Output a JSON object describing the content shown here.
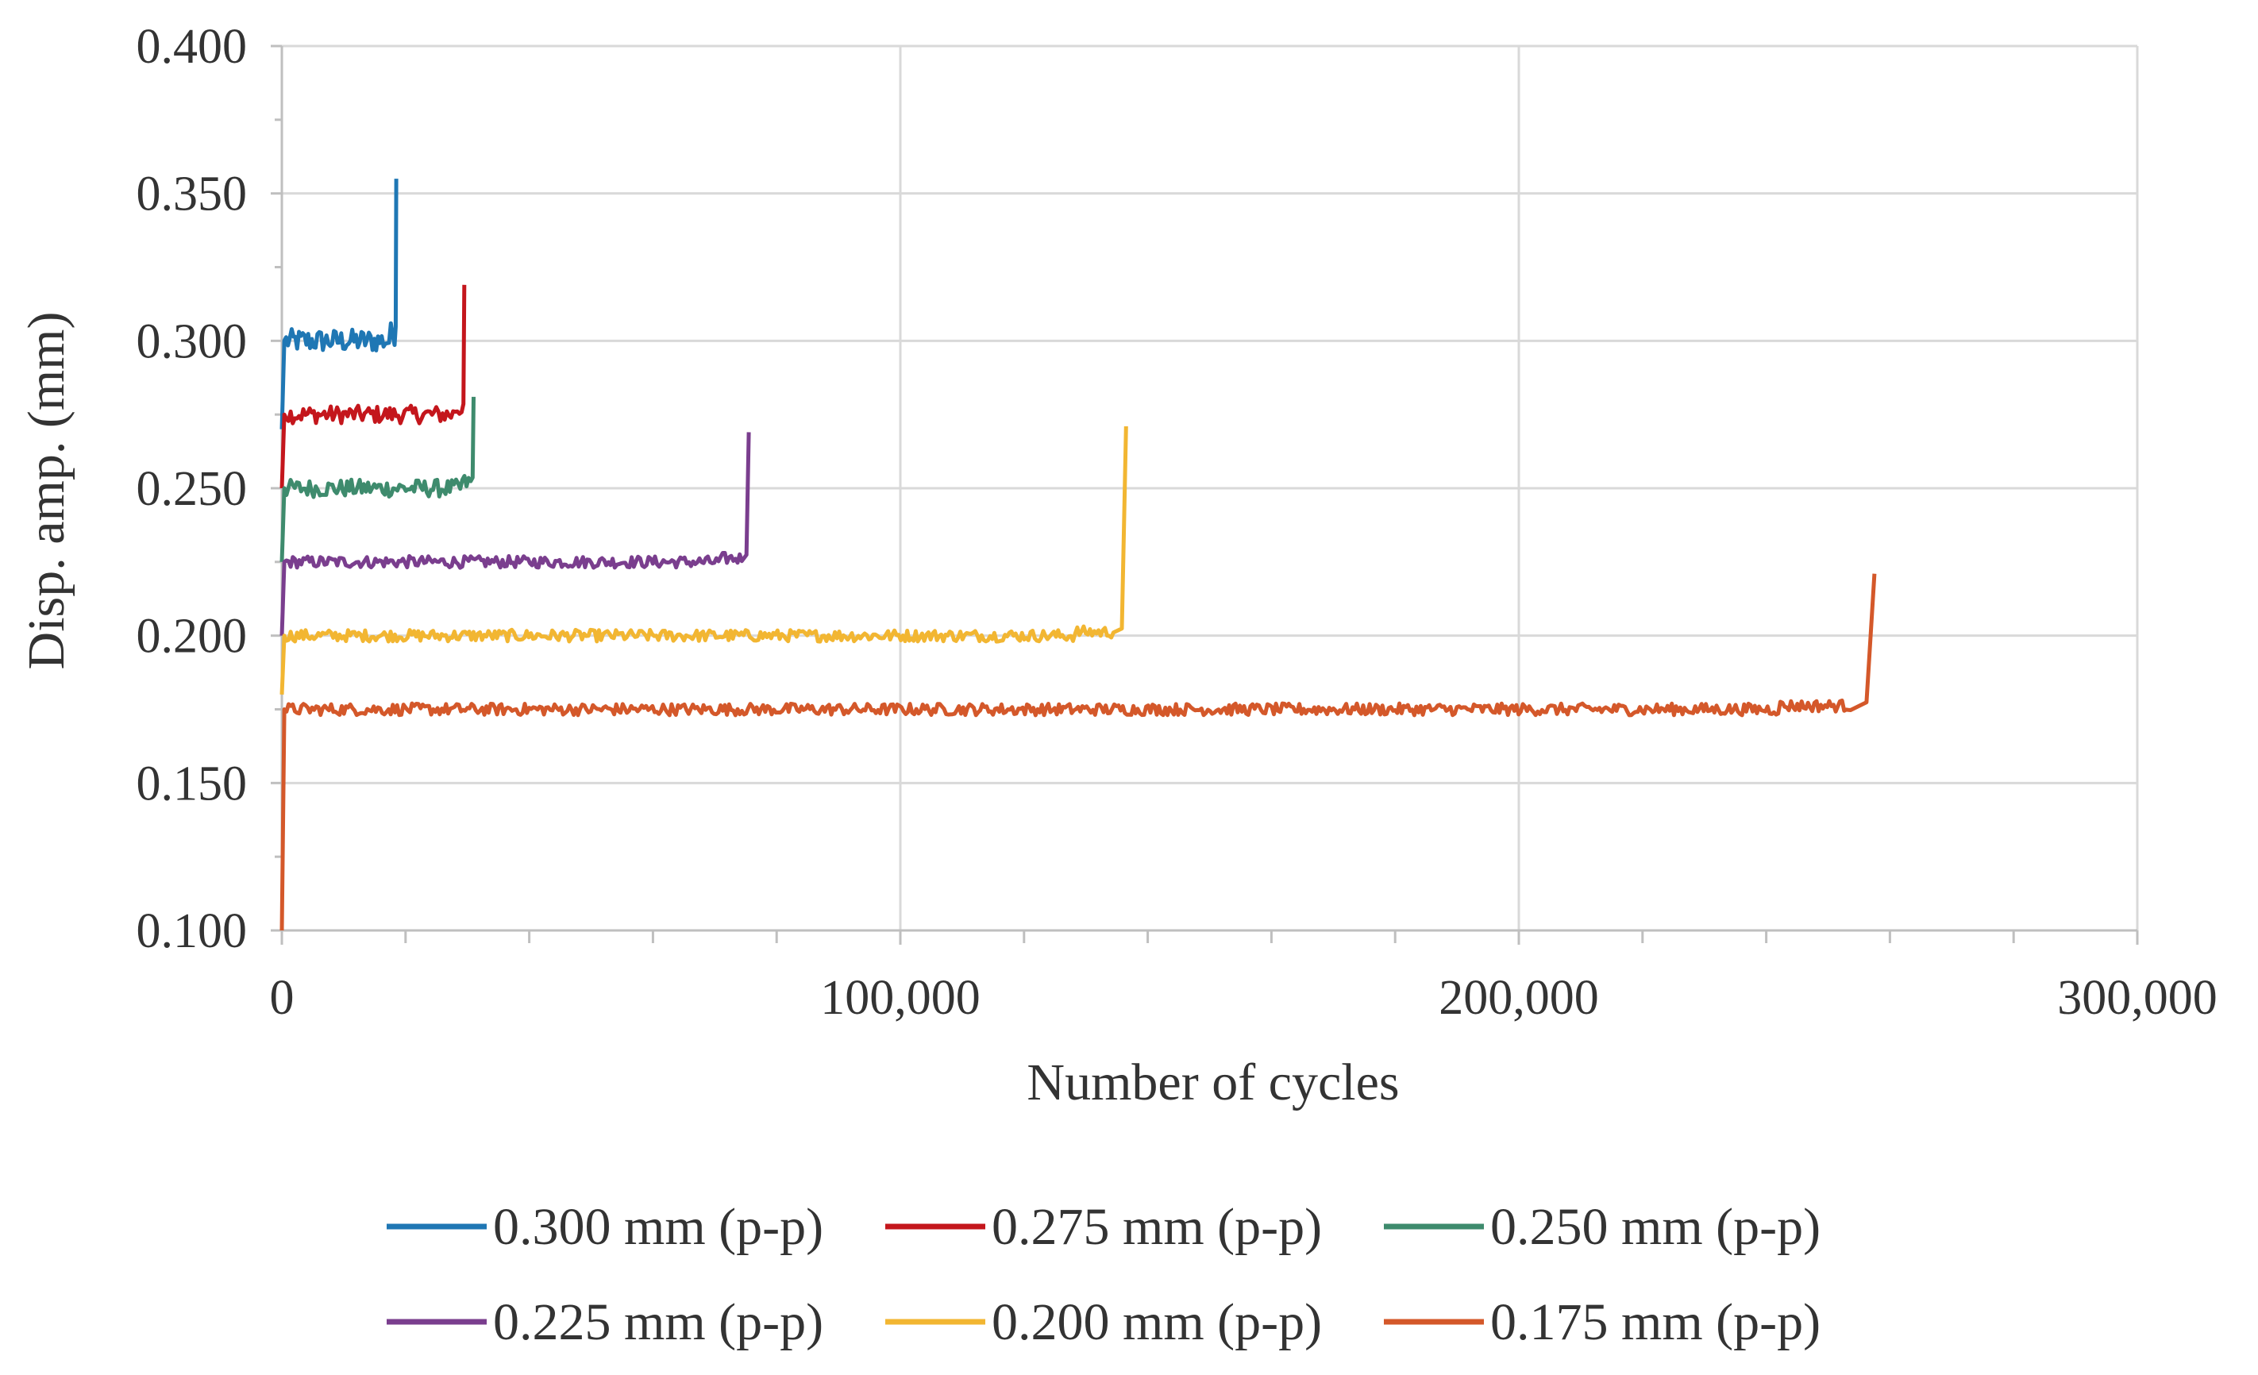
{
  "chart_data": {
    "type": "line",
    "title": "",
    "xlabel": "Number of cycles",
    "ylabel": "Disp. amp. (mm)",
    "xlim": [
      0,
      300000
    ],
    "ylim": [
      0.1,
      0.4
    ],
    "x_ticks": [
      0,
      100000,
      200000,
      300000
    ],
    "x_tick_labels": [
      "0",
      "100,000",
      "200,000",
      "300,000"
    ],
    "y_ticks": [
      0.1,
      0.15,
      0.2,
      0.25,
      0.3,
      0.35,
      0.4
    ],
    "y_tick_labels": [
      "0.100",
      "0.150",
      "0.200",
      "0.250",
      "0.300",
      "0.350",
      "0.400"
    ],
    "grid": true,
    "legend_position": "bottom",
    "series": [
      {
        "name": "0.300 mm (p-p)",
        "color": "#1f77b4",
        "plateau": 0.3,
        "end_cycles": 18500,
        "final_peak": 0.355,
        "start_value": 0.27,
        "noise": 0.004
      },
      {
        "name": "0.275 mm (p-p)",
        "color": "#c4161c",
        "plateau": 0.275,
        "end_cycles": 29500,
        "final_peak": 0.319,
        "start_value": 0.25,
        "noise": 0.003
      },
      {
        "name": "0.250 mm (p-p)",
        "color": "#3e8b6d",
        "plateau": 0.25,
        "end_cycles": 31000,
        "final_peak": 0.281,
        "start_value": 0.225,
        "noise": 0.003
      },
      {
        "name": "0.225 mm (p-p)",
        "color": "#7a3e8e",
        "plateau": 0.225,
        "end_cycles": 75500,
        "final_peak": 0.269,
        "start_value": 0.2,
        "noise": 0.002
      },
      {
        "name": "0.200 mm (p-p)",
        "color": "#f2b632",
        "plateau": 0.2,
        "end_cycles": 136500,
        "final_peak": 0.271,
        "start_value": 0.18,
        "noise": 0.002
      },
      {
        "name": "0.175 mm (p-p)",
        "color": "#d4582a",
        "plateau": 0.175,
        "end_cycles": 257500,
        "final_peak": 0.221,
        "start_value": 0.1,
        "noise": 0.002
      }
    ]
  }
}
